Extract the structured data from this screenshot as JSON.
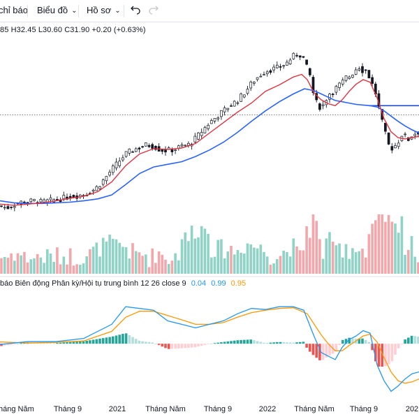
{
  "toolbar": {
    "indicators_label": "chỉ báo",
    "chart_label": "Biểu đồ",
    "profile_label": "Hồ sơ"
  },
  "ohlc_text": "85  H32.45  L30.60  C31.90  +0.20 (+0.63%)",
  "macd_legend": {
    "title": "báo Biên động Phân kỳ/Hội tụ trung bình 12 26 close 9",
    "v1": "0.04",
    "v2": "0.99",
    "v3": "0.95"
  },
  "colors": {
    "up": "#26a69a",
    "down": "#ef5350",
    "vol_up": "#8fd3c6",
    "vol_down": "#f4a7ab",
    "ma_fast": "#e0323f",
    "ma_slow": "#2962ff",
    "macd_line": "#2196f3",
    "signal_line": "#ff9800",
    "hist_up_strong": "#26a69a",
    "hist_up_weak": "#b2dfdb",
    "hist_down_strong": "#ef5350",
    "hist_down_weak": "#ffcdd2",
    "hline": "#1e4bd2"
  },
  "chart_data": {
    "type": "candlestick",
    "x_ticks": [
      "Tháng Năm",
      "Tháng 9",
      "2021",
      "Tháng Năm",
      "Tháng 9",
      "2022",
      "Tháng Năm",
      "Tháng 9",
      "202"
    ],
    "price_path": [
      [
        0,
        11.6
      ],
      [
        10,
        11.3
      ],
      [
        20,
        11.8
      ],
      [
        30,
        12.2
      ],
      [
        40,
        12.3
      ],
      [
        50,
        12.4
      ],
      [
        60,
        12.2
      ],
      [
        70,
        12.4
      ],
      [
        80,
        12.6
      ],
      [
        90,
        12.8
      ],
      [
        100,
        13.1
      ],
      [
        110,
        13.2
      ],
      [
        120,
        13.4
      ],
      [
        130,
        13.8
      ],
      [
        140,
        14.6
      ],
      [
        150,
        15.8
      ],
      [
        160,
        17.2
      ],
      [
        170,
        18.4
      ],
      [
        180,
        19.6
      ],
      [
        190,
        20.2
      ],
      [
        200,
        20.6
      ],
      [
        210,
        21.0
      ],
      [
        220,
        20.8
      ],
      [
        230,
        20.2
      ],
      [
        240,
        20.1
      ],
      [
        250,
        20.3
      ],
      [
        260,
        20.8
      ],
      [
        270,
        21.0
      ],
      [
        280,
        22.0
      ],
      [
        290,
        23.2
      ],
      [
        300,
        24.4
      ],
      [
        310,
        25.3
      ],
      [
        320,
        26.2
      ],
      [
        330,
        27.1
      ],
      [
        340,
        27.8
      ],
      [
        350,
        29.0
      ],
      [
        360,
        30.4
      ],
      [
        370,
        31.5
      ],
      [
        380,
        32.3
      ],
      [
        390,
        32.6
      ],
      [
        400,
        32.9
      ],
      [
        410,
        33.5
      ],
      [
        420,
        34.6
      ],
      [
        428,
        35.0
      ],
      [
        435,
        34.2
      ],
      [
        440,
        32.6
      ],
      [
        445,
        31.3
      ],
      [
        450,
        28.0
      ],
      [
        455,
        27.2
      ],
      [
        460,
        26.6
      ],
      [
        465,
        27.5
      ],
      [
        470,
        28.8
      ],
      [
        475,
        29.0
      ],
      [
        480,
        29.6
      ],
      [
        485,
        30.1
      ],
      [
        490,
        30.5
      ],
      [
        495,
        31.3
      ],
      [
        500,
        31.5
      ],
      [
        505,
        32.0
      ],
      [
        510,
        32.7
      ],
      [
        515,
        33.0
      ],
      [
        520,
        32.3
      ],
      [
        525,
        32.5
      ],
      [
        530,
        31.0
      ],
      [
        535,
        29.8
      ],
      [
        540,
        28.2
      ],
      [
        545,
        25.2
      ],
      [
        550,
        23.5
      ],
      [
        555,
        21.2
      ],
      [
        560,
        20.4
      ],
      [
        565,
        20.8
      ],
      [
        570,
        21.4
      ],
      [
        575,
        22.6
      ],
      [
        580,
        22.3
      ],
      [
        585,
        21.8
      ],
      [
        590,
        22.5
      ],
      [
        595,
        22.8
      ],
      [
        600,
        23.0
      ]
    ],
    "ma_fast": [
      [
        0,
        11.9
      ],
      [
        20,
        11.7
      ],
      [
        40,
        11.9
      ],
      [
        60,
        12.1
      ],
      [
        80,
        12.4
      ],
      [
        100,
        12.8
      ],
      [
        120,
        13.1
      ],
      [
        140,
        13.8
      ],
      [
        160,
        15.3
      ],
      [
        180,
        17.8
      ],
      [
        200,
        19.6
      ],
      [
        220,
        20.4
      ],
      [
        240,
        20.3
      ],
      [
        260,
        20.5
      ],
      [
        280,
        21.2
      ],
      [
        300,
        22.8
      ],
      [
        320,
        24.4
      ],
      [
        340,
        26.0
      ],
      [
        360,
        27.4
      ],
      [
        380,
        29.2
      ],
      [
        400,
        30.2
      ],
      [
        420,
        31.4
      ],
      [
        432,
        31.8
      ],
      [
        440,
        31.0
      ],
      [
        450,
        28.9
      ],
      [
        460,
        27.9
      ],
      [
        470,
        27.3
      ],
      [
        480,
        27.0
      ],
      [
        490,
        27.9
      ],
      [
        500,
        29.2
      ],
      [
        510,
        30.3
      ],
      [
        520,
        31.0
      ],
      [
        530,
        30.6
      ],
      [
        540,
        28.2
      ],
      [
        550,
        25.0
      ],
      [
        560,
        23.0
      ],
      [
        570,
        22.1
      ],
      [
        580,
        21.9
      ],
      [
        590,
        22.1
      ],
      [
        600,
        22.3
      ]
    ],
    "ma_slow": [
      [
        0,
        12.4
      ],
      [
        20,
        12.1
      ],
      [
        40,
        12.0
      ],
      [
        60,
        12.0
      ],
      [
        80,
        12.1
      ],
      [
        100,
        12.2
      ],
      [
        120,
        12.4
      ],
      [
        140,
        12.7
      ],
      [
        160,
        13.3
      ],
      [
        180,
        14.9
      ],
      [
        200,
        16.6
      ],
      [
        220,
        17.6
      ],
      [
        240,
        18.0
      ],
      [
        260,
        18.4
      ],
      [
        280,
        19.2
      ],
      [
        300,
        20.2
      ],
      [
        320,
        21.4
      ],
      [
        340,
        22.9
      ],
      [
        360,
        24.6
      ],
      [
        380,
        26.2
      ],
      [
        400,
        27.6
      ],
      [
        420,
        28.8
      ],
      [
        436,
        29.6
      ],
      [
        450,
        29.3
      ],
      [
        460,
        28.8
      ],
      [
        470,
        28.3
      ],
      [
        480,
        27.8
      ],
      [
        490,
        27.6
      ],
      [
        500,
        27.4
      ],
      [
        510,
        27.2
      ],
      [
        520,
        27.1
      ],
      [
        530,
        27.0
      ],
      [
        540,
        26.8
      ],
      [
        550,
        26.2
      ],
      [
        560,
        25.4
      ],
      [
        570,
        24.6
      ],
      [
        580,
        23.9
      ],
      [
        590,
        23.3
      ],
      [
        600,
        22.8
      ]
    ],
    "hline_value": 27.0,
    "dotted_value": 25.6,
    "price_axis": {
      "min": 10,
      "max": 37
    },
    "macd_points": [
      [
        0,
        -0.02
      ],
      [
        40,
        0.06
      ],
      [
        80,
        0.06
      ],
      [
        120,
        0.15
      ],
      [
        160,
        0.55
      ],
      [
        180,
        1.05
      ],
      [
        200,
        1.0
      ],
      [
        220,
        0.95
      ],
      [
        240,
        0.65
      ],
      [
        260,
        0.55
      ],
      [
        280,
        0.45
      ],
      [
        300,
        0.55
      ],
      [
        320,
        0.65
      ],
      [
        340,
        0.85
      ],
      [
        360,
        1.0
      ],
      [
        380,
        0.97
      ],
      [
        400,
        1.05
      ],
      [
        420,
        1.05
      ],
      [
        435,
        0.95
      ],
      [
        450,
        0.2
      ],
      [
        460,
        -0.25
      ],
      [
        470,
        -0.35
      ],
      [
        480,
        -0.45
      ],
      [
        490,
        -0.1
      ],
      [
        500,
        0.12
      ],
      [
        510,
        0.22
      ],
      [
        520,
        0.37
      ],
      [
        530,
        0.3
      ],
      [
        540,
        -0.6
      ],
      [
        550,
        -1.05
      ],
      [
        560,
        -1.35
      ],
      [
        570,
        -1.2
      ],
      [
        580,
        -1.0
      ],
      [
        590,
        -0.85
      ],
      [
        600,
        -0.8
      ]
    ],
    "signal_points": [
      [
        0,
        0.05
      ],
      [
        40,
        0.02
      ],
      [
        80,
        0.04
      ],
      [
        120,
        0.08
      ],
      [
        160,
        0.35
      ],
      [
        180,
        0.75
      ],
      [
        200,
        0.92
      ],
      [
        220,
        0.92
      ],
      [
        240,
        0.8
      ],
      [
        260,
        0.68
      ],
      [
        280,
        0.55
      ],
      [
        300,
        0.55
      ],
      [
        320,
        0.6
      ],
      [
        340,
        0.75
      ],
      [
        360,
        0.88
      ],
      [
        380,
        0.95
      ],
      [
        400,
        1.0
      ],
      [
        420,
        1.02
      ],
      [
        440,
        0.85
      ],
      [
        460,
        0.25
      ],
      [
        470,
        0.0
      ],
      [
        480,
        -0.2
      ],
      [
        490,
        -0.2
      ],
      [
        500,
        -0.05
      ],
      [
        510,
        0.08
      ],
      [
        520,
        0.22
      ],
      [
        530,
        0.27
      ],
      [
        540,
        0.05
      ],
      [
        550,
        -0.4
      ],
      [
        560,
        -0.8
      ],
      [
        570,
        -1.05
      ],
      [
        580,
        -1.12
      ],
      [
        590,
        -1.08
      ],
      [
        600,
        -1.0
      ]
    ],
    "macd_axis": {
      "min": -1.5,
      "max": 1.35
    }
  }
}
